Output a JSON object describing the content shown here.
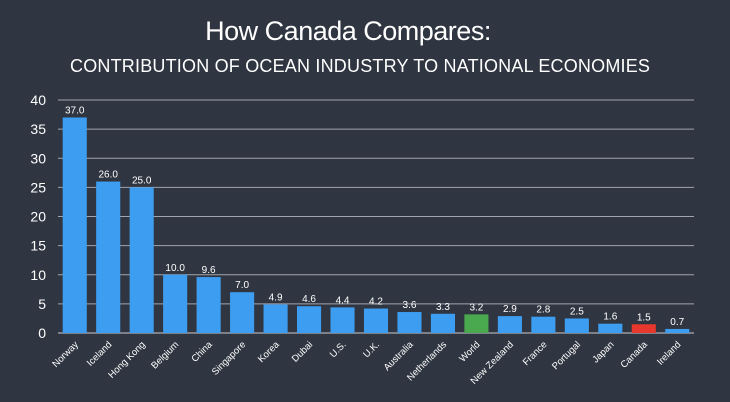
{
  "header": {
    "title": "How Canada Compares:",
    "subtitle": "CONTRIBUTION OF OCEAN INDUSTRY TO NATIONAL  ECONOMIES"
  },
  "colors": {
    "background": "#2f3541",
    "bar": "#3d9df0",
    "highlight_world": "#4aa84f",
    "highlight_canada": "#e8372c",
    "grid": "#c7cbd1",
    "text": "#ffffff"
  },
  "chart_data": {
    "type": "bar",
    "categories": [
      "Norway",
      "Iceland",
      "Hong Kong",
      "Belgium",
      "China",
      "Singapore",
      "Korea",
      "Dubai",
      "U.S.",
      "U.K.",
      "Australia",
      "Netherlands",
      "World",
      "New Zealand",
      "France",
      "Portugal",
      "Japan",
      "Canada",
      "Ireland"
    ],
    "values": [
      37.0,
      26.0,
      25.0,
      10.0,
      9.6,
      7.0,
      4.9,
      4.6,
      4.4,
      4.2,
      3.6,
      3.3,
      3.2,
      2.9,
      2.8,
      2.5,
      1.6,
      1.5,
      0.7
    ],
    "data_labels": [
      "37.0",
      "26.0",
      "25.0",
      "10.0",
      "9.6",
      "7.0",
      "4.9",
      "4.6",
      "4.4",
      "4.2",
      "3.6",
      "3.3",
      "3.2",
      "2.9",
      "2.8",
      "2.5",
      "1.6",
      "1.5",
      "0.7"
    ],
    "highlight": {
      "World": "#4aa84f",
      "Canada": "#e8372c"
    },
    "yticks": [
      "0",
      "5",
      "10",
      "15",
      "20",
      "25",
      "30",
      "35",
      "40"
    ],
    "ylim": [
      0,
      40
    ],
    "grid": true,
    "xlabel": "",
    "ylabel": ""
  }
}
